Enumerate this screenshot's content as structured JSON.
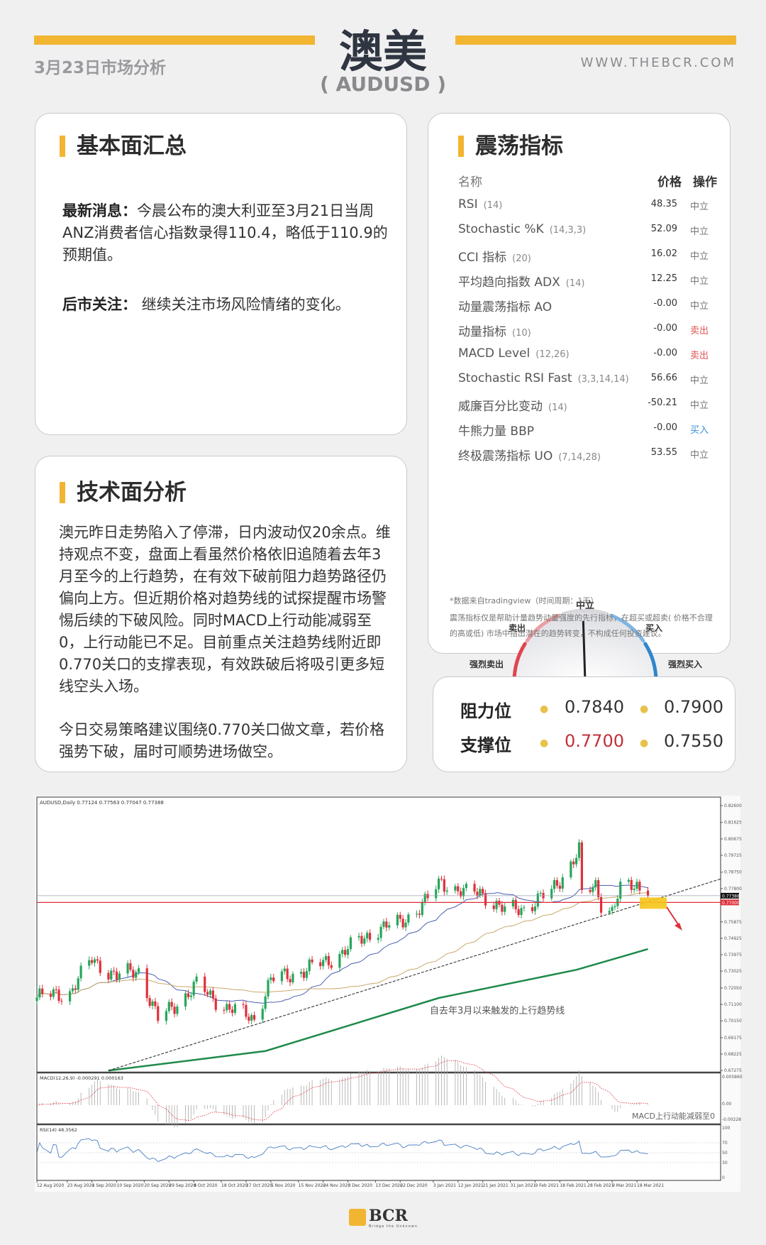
{
  "header": {
    "title": "澳美",
    "symbol": "( AUDUSD )",
    "date_label": "3月23日市场分析",
    "website": "WWW.THEBCR.COM",
    "accent": "#f2b531"
  },
  "fundamentals": {
    "title": "基本面汇总",
    "news_label": "最新消息：",
    "news_text": "今晨公布的澳大利亚至3月21日当周ANZ消费者信心指数录得110.4，略低于110.9的预期值。",
    "outlook_label": "后市关注：",
    "outlook_text": " 继续关注市场风险情绪的变化。"
  },
  "oscillators": {
    "title": "震荡指标",
    "col_name": "名称",
    "col_price": "价格",
    "col_action": "操作",
    "rows": [
      {
        "name": "RSI",
        "params": "(14)",
        "value": "48.35",
        "action": "中立",
        "color": "#777777"
      },
      {
        "name": "Stochastic %K",
        "params": "(14,3,3)",
        "value": "52.09",
        "action": "中立",
        "color": "#777777"
      },
      {
        "name": "CCI 指标",
        "params": "(20)",
        "value": "16.02",
        "action": "中立",
        "color": "#777777"
      },
      {
        "name": "平均趋向指数 ADX",
        "params": "(14)",
        "value": "12.25",
        "action": "中立",
        "color": "#777777"
      },
      {
        "name": "动量震荡指标 AO",
        "params": "",
        "value": "-0.00",
        "action": "中立",
        "color": "#777777"
      },
      {
        "name": "动量指标",
        "params": "(10)",
        "value": "-0.00",
        "action": "卖出",
        "color": "#e05555"
      },
      {
        "name": "MACD Level",
        "params": "(12,26)",
        "value": "-0.00",
        "action": "卖出",
        "color": "#e05555"
      },
      {
        "name": "Stochastic RSI Fast",
        "params": "(3,3,14,14)",
        "value": "56.66",
        "action": "中立",
        "color": "#777777"
      },
      {
        "name": "威廉百分比变动",
        "params": "(14)",
        "value": "-50.21",
        "action": "中立",
        "color": "#777777"
      },
      {
        "name": "牛熊力量 BBP",
        "params": "",
        "value": "-0.00",
        "action": "买入",
        "color": "#3a8fd6"
      },
      {
        "name": "终极震荡指标 UO",
        "params": "(7,14,28)",
        "value": "53.55",
        "action": "中立",
        "color": "#777777"
      }
    ],
    "gauge": {
      "labels": {
        "neutral": "中立",
        "sell": "卖出",
        "buy": "买入",
        "strong_sell": "强烈卖出",
        "strong_buy": "强烈买入"
      },
      "reading": "中立",
      "needle_fraction": 0.49,
      "colors": {
        "strong_sell": "#e0454d",
        "sell": "#eb9fa3",
        "neutral": "#d8d8dc",
        "buy": "#7fb5e3",
        "strong_buy": "#2f86cc"
      }
    },
    "footnote": "*数据来自tradingview（时间周期：1天）",
    "disclaimer": "震荡指标仅是帮助计量趋势动量强度的先行指标，在超买或超卖( 价格不合理的高或低) 市场中指出潜在的趋势转变，不构成任何投资建议。"
  },
  "technical": {
    "title": "技术面分析",
    "para1": "澳元昨日走势陷入了停滞，日内波动仅20余点。维持观点不变，盘面上看虽然价格依旧追随着去年3月至今的上行趋势，在有效下破前阻力趋势路径仍偏向上方。但近期价格对趋势线的试探提醒市场警惕后续的下破风险。同时MACD上行动能减弱至0，上行动能已不足。目前重点关注趋势线附近即0.770关口的支撑表现，有效跌破后将吸引更多短线空头入场。",
    "para2": "今日交易策略建议围绕0.770关口做文章，若价格强势下破，届时可顺势进场做空。"
  },
  "levels": {
    "resistance_label": "阻力位",
    "support_label": "支撑位",
    "resistance": [
      "0.7840",
      "0.7900"
    ],
    "support": [
      "0.7700",
      "0.7550"
    ],
    "highlight_color": "#c0303a"
  },
  "chart_data": {
    "type": "candlestick",
    "symbol_line": "AUDUSD,Daily  0.77124 0.77563 0.77047 0.77388",
    "price_ticks": [
      "0.82600",
      "0.81625",
      "0.80675",
      "0.79725",
      "0.78750",
      "0.77800",
      "0.75875",
      "0.74925",
      "0.73975",
      "0.73025",
      "0.72050",
      "0.71100",
      "0.70150",
      "0.69175",
      "0.68225",
      "0.67275"
    ],
    "current_price": "0.77388",
    "level_price": "0.77000",
    "date_ticks": [
      "12 Aug 2020",
      "23 Aug 2020",
      "1 Sep 2020",
      "10 Sep 2020",
      "20 Sep 2020",
      "29 Sep 2020",
      "8 Oct 2020",
      "18 Oct 2020",
      "27 Oct 2020",
      "5 Nov 2020",
      "15 Nov 2020",
      "24 Nov 2020",
      "3 Dec 2020",
      "13 Dec 2020",
      "22 Dec 2020",
      "3 Jan 2021",
      "12 Jan 2021",
      "21 Jan 2021",
      "31 Jan 2021",
      "9 Feb 2021",
      "18 Feb 2021",
      "28 Feb 2021",
      "9 Mar 2021",
      "18 Mar 2021"
    ],
    "close_anchors": [
      [
        "2020-08-12",
        0.715
      ],
      [
        "2020-08-24",
        0.718
      ],
      [
        "2020-09-01",
        0.737
      ],
      [
        "2020-09-10",
        0.727
      ],
      [
        "2020-09-18",
        0.731
      ],
      [
        "2020-09-25",
        0.702
      ],
      [
        "2020-10-09",
        0.722
      ],
      [
        "2020-10-20",
        0.709
      ],
      [
        "2020-10-30",
        0.703
      ],
      [
        "2020-11-05",
        0.725
      ],
      [
        "2020-11-16",
        0.73
      ],
      [
        "2020-11-24",
        0.735
      ],
      [
        "2020-12-03",
        0.743
      ],
      [
        "2020-12-14",
        0.755
      ],
      [
        "2020-12-22",
        0.758
      ],
      [
        "2020-12-31",
        0.77
      ],
      [
        "2021-01-06",
        0.782
      ],
      [
        "2021-01-15",
        0.775
      ],
      [
        "2021-01-20",
        0.776
      ],
      [
        "2021-01-29",
        0.765
      ],
      [
        "2021-02-05",
        0.767
      ],
      [
        "2021-02-15",
        0.776
      ],
      [
        "2021-02-25",
        0.8
      ],
      [
        "2021-02-26",
        0.773
      ],
      [
        "2021-03-03",
        0.78
      ],
      [
        "2021-03-05",
        0.77
      ],
      [
        "2021-03-09",
        0.765
      ],
      [
        "2021-03-12",
        0.777
      ],
      [
        "2021-03-18",
        0.7805
      ],
      [
        "2021-03-22",
        0.7739
      ]
    ],
    "long_ma": [
      [
        "2020-09-07",
        0.6727
      ],
      [
        "2020-11-03",
        0.684
      ],
      [
        "2021-01-05",
        0.7147
      ],
      [
        "2021-02-24",
        0.731
      ],
      [
        "2021-03-22",
        0.743
      ]
    ],
    "trendline": [
      [
        "2020-09-07",
        0.6727
      ],
      [
        "2021-03-22",
        0.7704
      ]
    ],
    "trendline_label": "自去年3月以来触发的上行趋势线",
    "macd_label": "MACD(12,26,9) -0.000291 0.000163",
    "macd_ticks": [
      "0.005860",
      "0.00",
      "-0.00228"
    ],
    "macd_note": "MACD上行动能减弱至0",
    "rsi_label": "RSI(14) 48.3562",
    "rsi_ticks": [
      "100",
      "70",
      "50",
      "30",
      "0"
    ]
  },
  "footer": {
    "logo_text": "BCR",
    "logo_tagline": "Bridge the Unknown"
  }
}
